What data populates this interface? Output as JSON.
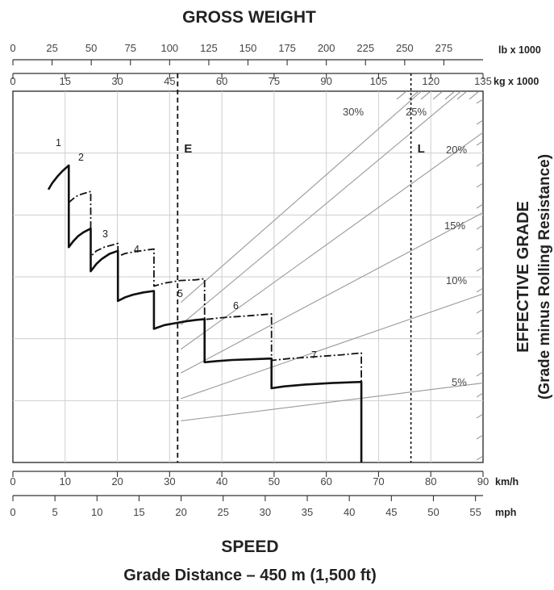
{
  "chart_data": {
    "type": "line",
    "title_top": "GROSS WEIGHT",
    "title_bottom": "SPEED",
    "subtitle_bottom": "Grade Distance – 450 m (1,500 ft)",
    "right_label_line1": "EFFECTIVE GRADE",
    "right_label_line2": "(Grade minus Rolling Resistance)",
    "axes": {
      "kmh": {
        "unit": "km/h",
        "range": [
          0,
          90
        ],
        "ticks": [
          "0",
          "10",
          "20",
          "30",
          "40",
          "50",
          "60",
          "70",
          "80",
          "90"
        ]
      },
      "mph": {
        "unit": "mph",
        "range": [
          0,
          55.9
        ],
        "ticks": [
          "0",
          "5",
          "10",
          "15",
          "20",
          "25",
          "30",
          "35",
          "40",
          "45",
          "50",
          "55"
        ]
      },
      "lb": {
        "unit": "lb x 1000",
        "range": [
          0,
          300
        ],
        "ticks": [
          "0",
          "25",
          "50",
          "75",
          "100",
          "125",
          "150",
          "175",
          "200",
          "225",
          "250",
          "275"
        ]
      },
      "kg": {
        "unit": "kg x 1000",
        "range": [
          0,
          135
        ],
        "ticks": [
          "0",
          "15",
          "30",
          "45",
          "60",
          "75",
          "90",
          "105",
          "120",
          "135"
        ]
      }
    },
    "grade_lines": [
      {
        "label": "5%",
        "from": [
          0,
          0.112
        ],
        "to": [
          1,
          0.214
        ]
      },
      {
        "label": "10%",
        "from": [
          0,
          0.172
        ],
        "to": [
          1,
          0.454
        ]
      },
      {
        "label": "15%",
        "from": [
          0,
          0.241
        ],
        "to": [
          1,
          0.673
        ]
      },
      {
        "label": "20%",
        "from": [
          0,
          0.305
        ],
        "to": [
          1,
          0.889
        ]
      },
      {
        "label": "25%",
        "from": [
          0,
          0.371
        ],
        "to": [
          0.927,
          1.0
        ]
      },
      {
        "label": "30%",
        "from": [
          0,
          0.431
        ],
        "to": [
          0.796,
          1.0
        ]
      }
    ],
    "reference_lines": [
      {
        "label": "E",
        "weight_kg": 47.3
      },
      {
        "label": "L",
        "weight_kg": 114.3
      }
    ],
    "gears": [
      "1",
      "2",
      "3",
      "4",
      "5",
      "6",
      "7"
    ],
    "series": [
      {
        "line": "solid",
        "points": [
          [
            6.8,
            0.735
          ],
          [
            7.5,
            0.752
          ],
          [
            8.5,
            0.77
          ],
          [
            9.5,
            0.785
          ],
          [
            10.7,
            0.8
          ],
          [
            10.7,
            0.58
          ],
          [
            11.5,
            0.595
          ],
          [
            12.5,
            0.61
          ],
          [
            13.5,
            0.62
          ],
          [
            14.9,
            0.63
          ],
          [
            14.9,
            0.515
          ],
          [
            16,
            0.535
          ],
          [
            17,
            0.548
          ],
          [
            18.5,
            0.562
          ],
          [
            20.1,
            0.57
          ],
          [
            20.1,
            0.435
          ],
          [
            21.5,
            0.445
          ],
          [
            23,
            0.452
          ],
          [
            25,
            0.458
          ],
          [
            27,
            0.462
          ],
          [
            27,
            0.36
          ],
          [
            29,
            0.37
          ],
          [
            31,
            0.375
          ],
          [
            33,
            0.38
          ],
          [
            35,
            0.384
          ],
          [
            36.7,
            0.386
          ],
          [
            36.7,
            0.27
          ],
          [
            39,
            0.273
          ],
          [
            42,
            0.276
          ],
          [
            46,
            0.278
          ],
          [
            49.5,
            0.28
          ],
          [
            49.5,
            0.2
          ],
          [
            52,
            0.205
          ],
          [
            56,
            0.21
          ],
          [
            61,
            0.214
          ],
          [
            66.7,
            0.217
          ],
          [
            66.7,
            0
          ]
        ]
      },
      {
        "line": "dashdot",
        "points": [
          [
            10.7,
            0.7
          ],
          [
            11.5,
            0.71
          ],
          [
            12.5,
            0.72
          ],
          [
            13.7,
            0.725
          ],
          [
            14.9,
            0.73
          ],
          [
            14.9,
            0.555
          ],
          [
            16,
            0.57
          ],
          [
            17.5,
            0.58
          ],
          [
            20.1,
            0.59
          ],
          [
            20.1,
            0.555
          ],
          [
            21.5,
            0.563
          ],
          [
            23.5,
            0.568
          ],
          [
            27,
            0.575
          ],
          [
            27,
            0.475
          ],
          [
            29,
            0.483
          ],
          [
            32,
            0.49
          ],
          [
            35,
            0.492
          ],
          [
            36.7,
            0.495
          ],
          [
            36.7,
            0.385
          ],
          [
            40,
            0.39
          ],
          [
            45,
            0.395
          ],
          [
            49.5,
            0.4
          ],
          [
            49.5,
            0.275
          ],
          [
            53,
            0.28
          ],
          [
            58,
            0.285
          ],
          [
            63,
            0.29
          ],
          [
            66.7,
            0.295
          ],
          [
            66.7,
            0.217
          ]
        ]
      }
    ]
  }
}
